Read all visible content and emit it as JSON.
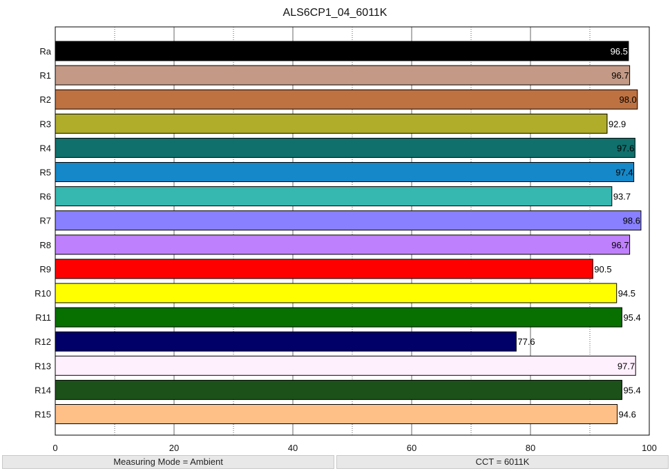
{
  "chart_data": {
    "type": "bar",
    "orientation": "horizontal",
    "title": "ALS6CP1_04_6011K",
    "xlabel": "",
    "ylabel": "",
    "xlim": [
      0,
      100
    ],
    "xticks": [
      "0",
      "20",
      "40",
      "60",
      "80",
      "100"
    ],
    "grid": "vertical dotted at every 10",
    "categories": [
      "Ra",
      "R1",
      "R2",
      "R3",
      "R4",
      "R5",
      "R6",
      "R7",
      "R8",
      "R9",
      "R10",
      "R11",
      "R12",
      "R13",
      "R14",
      "R15"
    ],
    "values": [
      96.5,
      96.7,
      98.0,
      92.9,
      97.6,
      97.4,
      93.7,
      98.6,
      96.7,
      90.5,
      94.5,
      95.4,
      77.6,
      97.7,
      95.4,
      94.6
    ],
    "value_labels": [
      "96.5",
      "96.7",
      "98.0",
      "92.9",
      "97.6",
      "97.4",
      "93.7",
      "98.6",
      "96.7",
      "90.5",
      "94.5",
      "95.4",
      "77.6",
      "97.7",
      "95.4",
      "94.6"
    ],
    "colors": [
      "#000000",
      "#c49a86",
      "#be7242",
      "#afad2a",
      "#0f706c",
      "#1488c8",
      "#36b8b0",
      "#8880fe",
      "#bf80fe",
      "#ff0000",
      "#ffff00",
      "#077000",
      "#010069",
      "#fff0fe",
      "#1c521a",
      "#ffc088"
    ],
    "label_colors": [
      "#ffffff",
      "#000000",
      "#000000",
      "#000000",
      "#000000",
      "#000000",
      "#000000",
      "#000000",
      "#000000",
      "#000000",
      "#000000",
      "#000000",
      "#000000",
      "#000000",
      "#000000",
      "#000000"
    ]
  },
  "status": {
    "measuring_mode": "Measuring Mode = Ambient",
    "cct": "CCT = 6011K"
  }
}
